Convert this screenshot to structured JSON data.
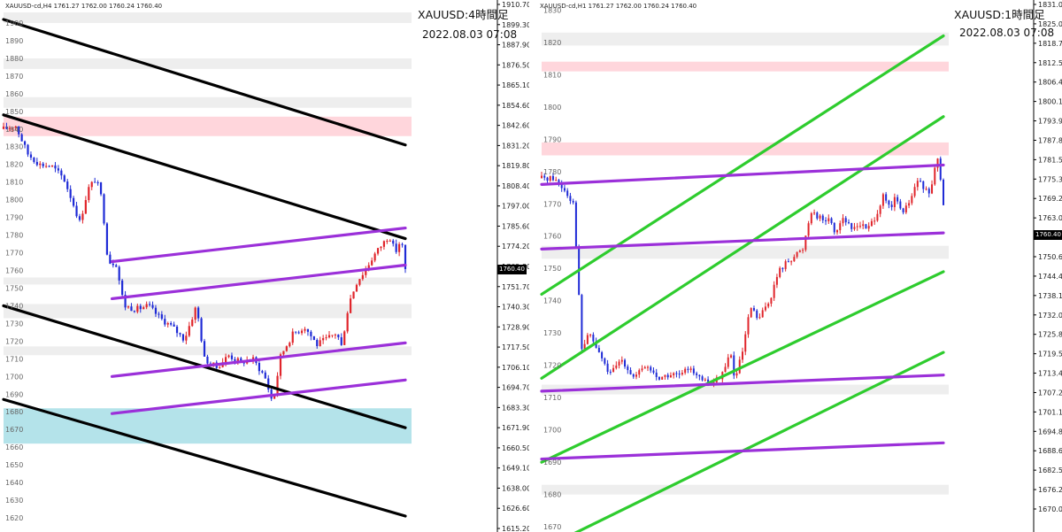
{
  "chart_data": [
    {
      "type": "candlestick",
      "symbol_line": "XAUUSD-cd,H4  1761.27 1762.00 1760.24 1760.40",
      "title": "XAUUSD:4時間足",
      "datetime": "2022.08.03 07:08",
      "current_price": "1760.40",
      "right_axis_ticks": [
        "1910.70",
        "1899.30",
        "1887.90",
        "1876.50",
        "1865.10",
        "1854.60",
        "1842.60",
        "1831.20",
        "1819.80",
        "1808.40",
        "1797.00",
        "1785.60",
        "1774.20",
        "1762.80",
        "1751.70",
        "1740.30",
        "1728.90",
        "1717.50",
        "1706.10",
        "1694.70",
        "1683.30",
        "1671.90",
        "1660.50",
        "1649.10",
        "1638.00",
        "1626.60",
        "1615.20"
      ],
      "left_axis_ticks": [
        "1900",
        "1890",
        "1880",
        "1870",
        "1860",
        "1850",
        "1840",
        "1830",
        "1820",
        "1810",
        "1800",
        "1790",
        "1780",
        "1770",
        "1760",
        "1750",
        "1740",
        "1730",
        "1720",
        "1710",
        "1700",
        "1690",
        "1680",
        "1670",
        "1660",
        "1650",
        "1640",
        "1630",
        "1620"
      ],
      "y_range": [
        1614,
        1911
      ],
      "zones": [
        {
          "from": 1900,
          "to": 1906,
          "color": "#eeeeee"
        },
        {
          "from": 1874,
          "to": 1880,
          "color": "#eeeeee"
        },
        {
          "from": 1852,
          "to": 1858,
          "color": "#eeeeee"
        },
        {
          "from": 1836,
          "to": 1847,
          "color": "#ffd6dc"
        },
        {
          "from": 1752,
          "to": 1756,
          "color": "#eeeeee"
        },
        {
          "from": 1733,
          "to": 1741,
          "color": "#eeeeee"
        },
        {
          "from": 1712,
          "to": 1717,
          "color": "#eeeeee"
        },
        {
          "from": 1662,
          "to": 1682,
          "color": "#b4e3ea"
        }
      ],
      "lines": [
        {
          "x1": 0.0,
          "y1": 1902,
          "x2": 1.0,
          "y2": 1831,
          "color": "#000000"
        },
        {
          "x1": 0.0,
          "y1": 1848,
          "x2": 1.0,
          "y2": 1778,
          "color": "#000000"
        },
        {
          "x1": 0.0,
          "y1": 1740,
          "x2": 1.0,
          "y2": 1671,
          "color": "#000000"
        },
        {
          "x1": 0.0,
          "y1": 1687,
          "x2": 1.0,
          "y2": 1621,
          "color": "#000000"
        },
        {
          "x1": 0.27,
          "y1": 1765,
          "x2": 1.0,
          "y2": 1784,
          "color": "#9b30d9"
        },
        {
          "x1": 0.27,
          "y1": 1744,
          "x2": 1.0,
          "y2": 1763,
          "color": "#9b30d9"
        },
        {
          "x1": 0.27,
          "y1": 1700,
          "x2": 1.0,
          "y2": 1719,
          "color": "#9b30d9"
        },
        {
          "x1": 0.27,
          "y1": 1679,
          "x2": 1.0,
          "y2": 1698,
          "color": "#9b30d9"
        }
      ],
      "close_path": [
        [
          0.0,
          1840
        ],
        [
          0.03,
          1842
        ],
        [
          0.06,
          1826
        ],
        [
          0.09,
          1820
        ],
        [
          0.12,
          1819
        ],
        [
          0.15,
          1812
        ],
        [
          0.17,
          1800
        ],
        [
          0.19,
          1787
        ],
        [
          0.21,
          1806
        ],
        [
          0.23,
          1812
        ],
        [
          0.245,
          1800
        ],
        [
          0.26,
          1765
        ],
        [
          0.28,
          1764
        ],
        [
          0.3,
          1740
        ],
        [
          0.33,
          1738
        ],
        [
          0.36,
          1740
        ],
        [
          0.39,
          1733
        ],
        [
          0.42,
          1728
        ],
        [
          0.45,
          1721
        ],
        [
          0.48,
          1740
        ],
        [
          0.5,
          1710
        ],
        [
          0.53,
          1705
        ],
        [
          0.56,
          1712
        ],
        [
          0.59,
          1708
        ],
        [
          0.62,
          1710
        ],
        [
          0.65,
          1700
        ],
        [
          0.67,
          1685
        ],
        [
          0.69,
          1712
        ],
        [
          0.72,
          1724
        ],
        [
          0.75,
          1728
        ],
        [
          0.78,
          1718
        ],
        [
          0.81,
          1722
        ],
        [
          0.83,
          1725
        ],
        [
          0.84,
          1716
        ],
        [
          0.86,
          1742
        ],
        [
          0.88,
          1754
        ],
        [
          0.9,
          1760
        ],
        [
          0.92,
          1768
        ],
        [
          0.94,
          1774
        ],
        [
          0.96,
          1780
        ],
        [
          0.975,
          1770
        ],
        [
          0.99,
          1778
        ],
        [
          1.0,
          1760
        ]
      ]
    },
    {
      "type": "candlestick",
      "symbol_line": "XAUUSD-cd,H1  1761.27 1762.00 1760.24 1760.40",
      "title": "XAUUSD:1時間足",
      "datetime": "2022.08.03 07:08",
      "current_price": "1760.40",
      "right_axis_ticks": [
        "1831.05",
        "1825.00",
        "1818.75",
        "1812.55",
        "1806.40",
        "1800.10",
        "1793.95",
        "1787.80",
        "1781.50",
        "1775.35",
        "1769.20",
        "1763.05",
        "1756.75",
        "1750.60",
        "1744.45",
        "1738.15",
        "1732.00",
        "1725.85",
        "1719.55",
        "1713.40",
        "1707.25",
        "1701.10",
        "1694.80",
        "1688.65",
        "1682.50",
        "1676.20",
        "1670.05"
      ],
      "left_axis_ticks": [
        "1830",
        "1820",
        "1810",
        "1800",
        "1790",
        "1780",
        "1770",
        "1760",
        "1750",
        "1740",
        "1730",
        "1720",
        "1710",
        "1700",
        "1690",
        "1680",
        "1670"
      ],
      "y_range": [
        1669.5,
        1832
      ],
      "zones": [
        {
          "from": 1819,
          "to": 1823,
          "color": "#eeeeee"
        },
        {
          "from": 1811,
          "to": 1814,
          "color": "#ffd6dc"
        },
        {
          "from": 1785,
          "to": 1789,
          "color": "#ffd6dc"
        },
        {
          "from": 1753,
          "to": 1757,
          "color": "#eeeeee"
        },
        {
          "from": 1711,
          "to": 1714,
          "color": "#eeeeee"
        },
        {
          "from": 1680,
          "to": 1683,
          "color": "#eeeeee"
        }
      ],
      "lines": [
        {
          "x1": 0.0,
          "y1": 1742,
          "x2": 1.0,
          "y2": 1822,
          "color": "#2ecc2e"
        },
        {
          "x1": 0.0,
          "y1": 1716,
          "x2": 1.0,
          "y2": 1797,
          "color": "#2ecc2e"
        },
        {
          "x1": 0.0,
          "y1": 1690,
          "x2": 1.0,
          "y2": 1749,
          "color": "#2ecc2e"
        },
        {
          "x1": 0.0,
          "y1": 1663,
          "x2": 1.0,
          "y2": 1724,
          "color": "#2ecc2e"
        },
        {
          "x1": 0.0,
          "y1": 1776,
          "x2": 1.0,
          "y2": 1782,
          "color": "#9b30d9"
        },
        {
          "x1": 0.0,
          "y1": 1756,
          "x2": 1.0,
          "y2": 1761,
          "color": "#9b30d9"
        },
        {
          "x1": 0.0,
          "y1": 1712,
          "x2": 1.0,
          "y2": 1717,
          "color": "#9b30d9"
        },
        {
          "x1": 0.0,
          "y1": 1691,
          "x2": 1.0,
          "y2": 1696,
          "color": "#9b30d9"
        }
      ],
      "close_path": [
        [
          0.0,
          1778
        ],
        [
          0.03,
          1778
        ],
        [
          0.06,
          1774
        ],
        [
          0.08,
          1770
        ],
        [
          0.1,
          1725
        ],
        [
          0.12,
          1730
        ],
        [
          0.13,
          1727
        ],
        [
          0.15,
          1722
        ],
        [
          0.17,
          1717
        ],
        [
          0.2,
          1722
        ],
        [
          0.23,
          1716
        ],
        [
          0.26,
          1720
        ],
        [
          0.29,
          1716
        ],
        [
          0.32,
          1717
        ],
        [
          0.35,
          1717
        ],
        [
          0.37,
          1720
        ],
        [
          0.39,
          1716
        ],
        [
          0.42,
          1714
        ],
        [
          0.44,
          1716
        ],
        [
          0.46,
          1720
        ],
        [
          0.47,
          1725
        ],
        [
          0.48,
          1715
        ],
        [
          0.5,
          1724
        ],
        [
          0.52,
          1738
        ],
        [
          0.54,
          1734
        ],
        [
          0.57,
          1741
        ],
        [
          0.59,
          1749
        ],
        [
          0.61,
          1752
        ],
        [
          0.63,
          1754
        ],
        [
          0.65,
          1756
        ],
        [
          0.66,
          1762
        ],
        [
          0.67,
          1768
        ],
        [
          0.7,
          1765
        ],
        [
          0.72,
          1765
        ],
        [
          0.73,
          1761
        ],
        [
          0.75,
          1766
        ],
        [
          0.77,
          1762
        ],
        [
          0.79,
          1764
        ],
        [
          0.81,
          1762
        ],
        [
          0.83,
          1766
        ],
        [
          0.85,
          1772
        ],
        [
          0.87,
          1768
        ],
        [
          0.88,
          1772
        ],
        [
          0.9,
          1767
        ],
        [
          0.92,
          1772
        ],
        [
          0.94,
          1778
        ],
        [
          0.95,
          1774
        ],
        [
          0.97,
          1774
        ],
        [
          0.985,
          1785
        ],
        [
          1.0,
          1770
        ],
        [
          1.01,
          1762
        ],
        [
          1.02,
          1760
        ]
      ]
    }
  ]
}
